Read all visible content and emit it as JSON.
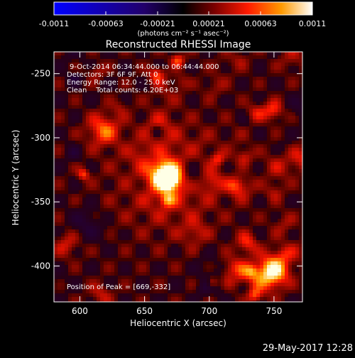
{
  "colorbar": {
    "tick_labels": [
      "-0.0011",
      "-0.00063",
      "-0.00021",
      "0.00021",
      "0.00063",
      "0.0011"
    ],
    "range": [
      -0.0011,
      0.0011
    ],
    "units": "(photons cm⁻² s⁻¹ asec⁻²)"
  },
  "chart_data": {
    "type": "heatmap",
    "title": "Reconstructed RHESSI Image",
    "xlabel": "Heliocentric X (arcsec)",
    "ylabel": "Heliocentric Y (arcsec)",
    "xlim": [
      580,
      772
    ],
    "ylim": [
      -428,
      -233
    ],
    "x_ticks": [
      600,
      650,
      700,
      750
    ],
    "y_ticks": [
      -250,
      -300,
      -350,
      -400
    ],
    "annotations": [
      "9-Oct-2014 06:34:44.000 to 06:44:44.000",
      "Detectors: 3F 6F 9F, Att 0",
      "Energy Range: 12.0 - 25.0 keV",
      "Clean    Total counts: 6.20E+03"
    ],
    "peak_label": "Position of Peak = [669,-332]",
    "peak": {
      "x": 669,
      "y": -332
    },
    "color_table": "red-temperature"
  },
  "footer": {
    "date": "29-May-2017 12:28"
  }
}
